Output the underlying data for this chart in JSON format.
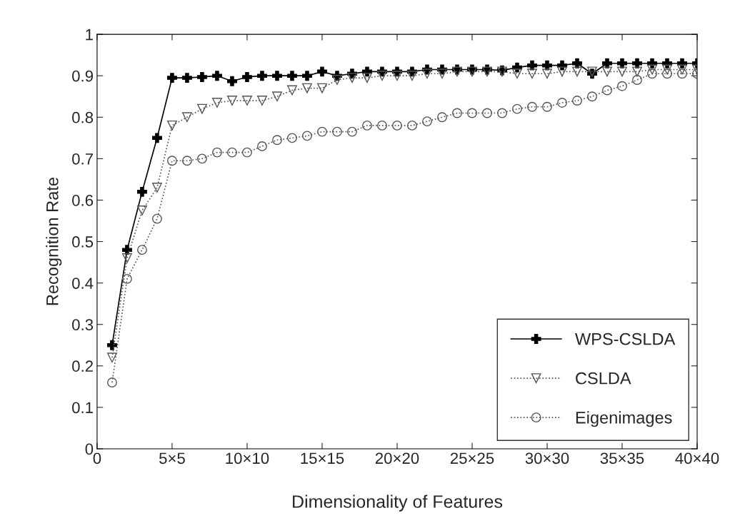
{
  "chart_data": {
    "type": "line",
    "xlabel": "Dimensionality of Features",
    "ylabel": "Recognition Rate",
    "categories": [
      "0",
      null,
      null,
      null,
      null,
      "5×5",
      null,
      null,
      null,
      null,
      "10×10",
      null,
      null,
      null,
      null,
      "15×15",
      null,
      null,
      null,
      null,
      "20×20",
      null,
      null,
      null,
      null,
      "25×25",
      null,
      null,
      null,
      null,
      "30×30",
      null,
      null,
      null,
      null,
      "35×35",
      null,
      null,
      null,
      null,
      "40×40"
    ],
    "ylim": [
      0,
      1
    ],
    "yticks": [
      0,
      0.1,
      0.2,
      0.3,
      0.4,
      0.5,
      0.6,
      0.7,
      0.8,
      0.9,
      1
    ],
    "grid": false,
    "legend": "bottom right",
    "series": [
      {
        "name": "WPS-CSLDA",
        "color": "#000000",
        "marker": "cross",
        "line_style": "solid",
        "values": [
          null,
          0.25,
          0.48,
          0.62,
          0.75,
          0.895,
          0.895,
          0.897,
          0.9,
          0.887,
          0.897,
          0.9,
          0.9,
          0.9,
          0.9,
          0.91,
          0.9,
          0.905,
          0.91,
          0.91,
          0.91,
          0.91,
          0.915,
          0.915,
          0.915,
          0.915,
          0.915,
          0.913,
          0.92,
          0.925,
          0.925,
          0.925,
          0.93,
          0.905,
          0.93,
          0.93,
          0.93,
          0.93,
          0.93,
          0.93,
          0.93
        ]
      },
      {
        "name": "CSLDA",
        "color": "#555555",
        "marker": "triangle",
        "line_style": "dotted",
        "values": [
          null,
          0.22,
          0.46,
          0.575,
          0.63,
          0.78,
          0.8,
          0.82,
          0.835,
          0.84,
          0.84,
          0.84,
          0.85,
          0.865,
          0.87,
          0.87,
          0.89,
          0.895,
          0.895,
          0.9,
          0.9,
          0.9,
          0.905,
          0.905,
          0.91,
          0.91,
          0.91,
          0.91,
          0.905,
          0.905,
          0.905,
          0.91,
          0.91,
          0.91,
          0.91,
          0.91,
          0.91,
          0.915,
          0.915,
          0.915,
          0.915
        ]
      },
      {
        "name": "Eigenimages",
        "color": "#555555",
        "marker": "circle",
        "line_style": "dotted",
        "values": [
          null,
          0.16,
          0.41,
          0.48,
          0.555,
          0.695,
          0.695,
          0.7,
          0.715,
          0.715,
          0.715,
          0.73,
          0.745,
          0.75,
          0.755,
          0.765,
          0.765,
          0.765,
          0.78,
          0.78,
          0.78,
          0.78,
          0.79,
          0.8,
          0.81,
          0.81,
          0.81,
          0.81,
          0.82,
          0.825,
          0.825,
          0.835,
          0.84,
          0.85,
          0.865,
          0.875,
          0.89,
          0.905,
          0.905,
          0.905,
          0.905
        ]
      }
    ]
  }
}
